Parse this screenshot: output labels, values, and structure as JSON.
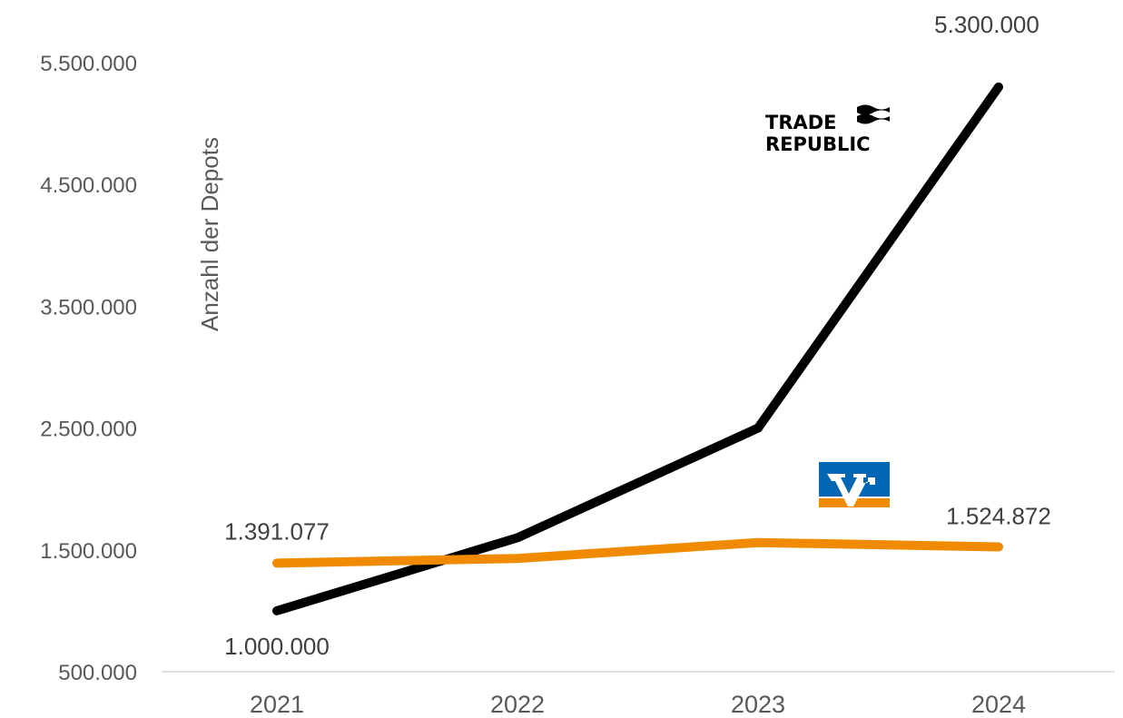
{
  "chart_data": {
    "type": "line",
    "categories": [
      "2021",
      "2022",
      "2023",
      "2024"
    ],
    "ylabel": "Anzahl der Depots",
    "ylim": [
      500000,
      5500000
    ],
    "yticks": [
      500000,
      1500000,
      2500000,
      3500000,
      4500000,
      5500000
    ],
    "ytick_labels": [
      "500.000",
      "1.500.000",
      "2.500.000",
      "3.500.000",
      "4.500.000",
      "5.500.000"
    ],
    "grid": false,
    "series": [
      {
        "logo": "trade-republic-logo",
        "color": "#000000",
        "values": [
          1000000,
          1600000,
          2500000,
          5300000
        ],
        "labels": [
          "1.000.000",
          "",
          "",
          "5.300.000"
        ]
      },
      {
        "logo": "volksbank-raiffeisenbank-logo",
        "color": "#F08A00",
        "values": [
          1391077,
          1430000,
          1560000,
          1524872
        ],
        "labels": [
          "1.391.077",
          "",
          "",
          "1.524.872"
        ]
      }
    ]
  },
  "logos": {
    "trade_republic": {
      "line1": "TRADE",
      "line2": "REPUBLIC"
    },
    "vr_bank": {
      "primary_color": "#0066B3",
      "accent_color": "#F08A00"
    }
  }
}
